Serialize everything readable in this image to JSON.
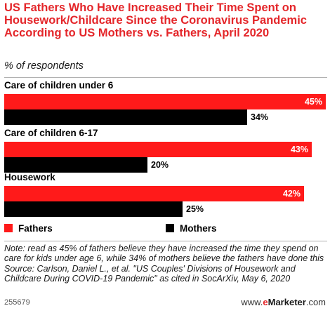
{
  "header": {
    "title": "US Fathers Who Have Increased Their Time Spent on Housework/Childcare Since the Coronavirus Pandemic According to US Mothers vs. Fathers, April 2020",
    "subtitle": "% of respondents"
  },
  "chart_data": {
    "type": "bar",
    "orientation": "horizontal",
    "categories": [
      "Care of children under 6",
      "Care of children 6-17",
      "Housework"
    ],
    "series": [
      {
        "name": "Fathers",
        "values": [
          45,
          43,
          42
        ],
        "labels": [
          "45%",
          "43%",
          "42%"
        ],
        "color": "#ff1a1a"
      },
      {
        "name": "Mothers",
        "values": [
          34,
          20,
          25
        ],
        "labels": [
          "34%",
          "20%",
          "25%"
        ],
        "color": "#000000"
      }
    ],
    "xlim": [
      0,
      45
    ],
    "grid": false,
    "legend_position": "bottom-left"
  },
  "legend": {
    "fathers": "Fathers",
    "mothers": "Mothers"
  },
  "footer": {
    "note": "Note: read as 45% of fathers believe they have increased the time they spend on care for kids under age 6, while 34% of mothers believe the fathers have done this",
    "source": "Source: Carlson, Daniel L., et al. \"US Couples' Divisions of Housework and Childcare During COVID-19 Pandemic\" as cited in SocArXiv, May 6, 2020",
    "chart_id": "255679",
    "logo_brand": "eMarketer",
    "logo_suffix": ".com",
    "logo_e": "e"
  }
}
